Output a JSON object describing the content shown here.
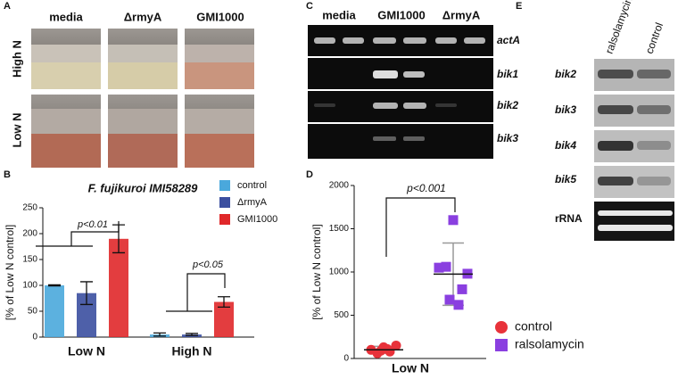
{
  "panel_labels": [
    "A",
    "B",
    "C",
    "D",
    "E"
  ],
  "panel_a": {
    "columns": [
      "media",
      "ΔrmyA",
      "GMI1000"
    ],
    "rows": [
      "High N",
      "Low N"
    ]
  },
  "panel_c": {
    "columns": [
      "media",
      "GMI1000",
      "ΔrmyA"
    ],
    "genes": [
      "actA",
      "bik1",
      "bik2",
      "bik3"
    ]
  },
  "panel_e": {
    "columns": [
      "ralsolamycin",
      "control"
    ],
    "rows": [
      "bik2",
      "bik3",
      "bik4",
      "bik5",
      "rRNA"
    ]
  },
  "chart_data": [
    {
      "type": "bar",
      "title": "F. fujikuroi IMI58289",
      "y_label": "[% of Low N control]",
      "categories": [
        "Low N",
        "High N"
      ],
      "series": [
        {
          "name": "control",
          "color": "#4aa8dc",
          "values": [
            100,
            5
          ],
          "errors": [
            1,
            3
          ]
        },
        {
          "name": "ΔrmyA",
          "color": "#3b4fa0",
          "values": [
            85,
            5
          ],
          "errors": [
            22,
            2
          ]
        },
        {
          "name": "GMI1000",
          "color": "#e0282a",
          "values": [
            190,
            68
          ],
          "errors": [
            27,
            10
          ]
        }
      ],
      "ylim": [
        0,
        250
      ],
      "yticks": [
        0,
        50,
        100,
        150,
        200,
        250
      ],
      "annotations": [
        "p<0.01",
        "p<0.05"
      ]
    },
    {
      "type": "strip",
      "y_label": "[% of Low N control]",
      "categories": [
        "Low N"
      ],
      "series": [
        {
          "name": "control",
          "color": "#e8323a",
          "marker": "circle",
          "values": [
            100,
            60,
            130,
            80,
            150,
            90,
            110
          ],
          "mean": 100,
          "error": 40
        },
        {
          "name": "ralsolamycin",
          "color": "#8a3fe0",
          "marker": "square",
          "values": [
            1600,
            1050,
            980,
            1060,
            800,
            680,
            620
          ],
          "mean": 975,
          "error": 360
        }
      ],
      "ylim": [
        0,
        2000
      ],
      "yticks": [
        0,
        500,
        1000,
        1500,
        2000
      ],
      "annotations": [
        "p<0.001"
      ]
    }
  ]
}
